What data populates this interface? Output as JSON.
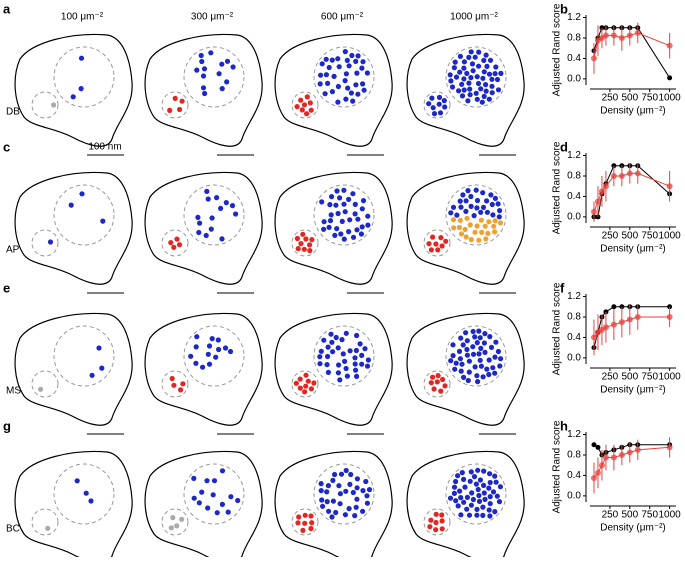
{
  "panel_labels": [
    "a",
    "b",
    "c",
    "d",
    "e",
    "f",
    "g",
    "h"
  ],
  "column_headers": [
    "100 μm⁻²",
    "300 μm⁻²",
    "600 μm⁻²",
    "1000 μm⁻²"
  ],
  "row_labels": [
    "DB",
    "AP",
    "MS",
    "BC"
  ],
  "scale_bar_label": "100 nm",
  "chart_data": [
    {
      "type": "line",
      "xlabel": "Density (μm⁻²)",
      "ylabel": "Adjusted Rand score",
      "x": [
        50,
        100,
        150,
        200,
        300,
        400,
        500,
        600,
        1000
      ],
      "xlim": [
        0,
        1080
      ],
      "xticks": [
        250,
        500,
        750,
        1000
      ],
      "ylim": [
        -0.12,
        1.25
      ],
      "yticks": [
        {
          "value": 0,
          "label": "0.0"
        },
        {
          "value": 0.4,
          "label": "0.4"
        },
        {
          "value": 0.8,
          "label": "0.8"
        },
        {
          "value": 1.2,
          "label": "1.2"
        }
      ],
      "series": [
        {
          "color": "#000000",
          "values": [
            0.55,
            0.8,
            1.0,
            1.0,
            1.0,
            1.0,
            1.0,
            1.0,
            0.02
          ]
        },
        {
          "color": "#e8413c",
          "values": [
            0.4,
            0.75,
            0.8,
            0.85,
            0.85,
            0.8,
            0.85,
            0.9,
            0.65
          ],
          "errors": [
            0.3,
            0.3,
            0.2,
            0.2,
            0.2,
            0.25,
            0.2,
            0.2,
            0.25
          ]
        }
      ]
    },
    {
      "type": "line",
      "xlabel": "Density (μm⁻²)",
      "ylabel": "Adjusted Rand score",
      "x": [
        50,
        100,
        150,
        200,
        300,
        400,
        500,
        600,
        1000
      ],
      "xlim": [
        0,
        1080
      ],
      "xticks": [
        250,
        500,
        750,
        1000
      ],
      "ylim": [
        -0.12,
        1.25
      ],
      "yticks": [
        {
          "value": 0,
          "label": "0.0"
        },
        {
          "value": 0.4,
          "label": "0.4"
        },
        {
          "value": 0.8,
          "label": "0.8"
        },
        {
          "value": 1.2,
          "label": "1.2"
        }
      ],
      "series": [
        {
          "color": "#000000",
          "values": [
            0,
            0,
            0.45,
            0.65,
            1.0,
            1.0,
            1.0,
            1.0,
            0.45
          ]
        },
        {
          "color": "#e8413c",
          "values": [
            0.1,
            0.3,
            0.5,
            0.6,
            0.8,
            0.8,
            0.85,
            0.85,
            0.6
          ],
          "errors": [
            0.2,
            0.3,
            0.3,
            0.3,
            0.2,
            0.2,
            0.2,
            0.2,
            0.3
          ]
        }
      ]
    },
    {
      "type": "line",
      "xlabel": "Density (μm⁻²)",
      "ylabel": "Adjusted Rand score",
      "x": [
        50,
        100,
        150,
        200,
        300,
        400,
        500,
        600,
        1000
      ],
      "xlim": [
        0,
        1080
      ],
      "xticks": [
        250,
        500,
        750,
        1000
      ],
      "ylim": [
        -0.12,
        1.25
      ],
      "yticks": [
        {
          "value": 0,
          "label": "0.0"
        },
        {
          "value": 0.4,
          "label": "0.4"
        },
        {
          "value": 0.8,
          "label": "0.8"
        },
        {
          "value": 1.2,
          "label": "1.2"
        }
      ],
      "series": [
        {
          "color": "#000000",
          "values": [
            0.2,
            0.5,
            0.8,
            0.9,
            1.0,
            1.0,
            1.0,
            1.0,
            1.0
          ]
        },
        {
          "color": "#e8413c",
          "values": [
            0.4,
            0.5,
            0.55,
            0.6,
            0.65,
            0.7,
            0.75,
            0.8,
            0.8
          ],
          "errors": [
            0.35,
            0.35,
            0.3,
            0.3,
            0.3,
            0.3,
            0.3,
            0.25,
            0.2
          ]
        }
      ]
    },
    {
      "type": "line",
      "xlabel": "Density (μm⁻²)",
      "ylabel": "Adjusted Rand score",
      "x": [
        50,
        100,
        150,
        200,
        300,
        400,
        500,
        600,
        1000
      ],
      "xlim": [
        0,
        1080
      ],
      "xticks": [
        250,
        500,
        750,
        1000
      ],
      "ylim": [
        -0.12,
        1.25
      ],
      "yticks": [
        {
          "value": 0,
          "label": "0.0"
        },
        {
          "value": 0.4,
          "label": "0.4"
        },
        {
          "value": 0.8,
          "label": "0.8"
        },
        {
          "value": 1.2,
          "label": "1.2"
        }
      ],
      "series": [
        {
          "color": "#000000",
          "values": [
            1.0,
            0.95,
            0.8,
            0.85,
            0.9,
            0.95,
            1.0,
            1.0,
            1.0
          ]
        },
        {
          "color": "#e8413c",
          "values": [
            0.35,
            0.45,
            0.6,
            0.75,
            0.75,
            0.8,
            0.85,
            0.9,
            0.95
          ],
          "errors": [
            0.3,
            0.3,
            0.3,
            0.25,
            0.25,
            0.2,
            0.2,
            0.2,
            0.2
          ]
        }
      ]
    }
  ]
}
